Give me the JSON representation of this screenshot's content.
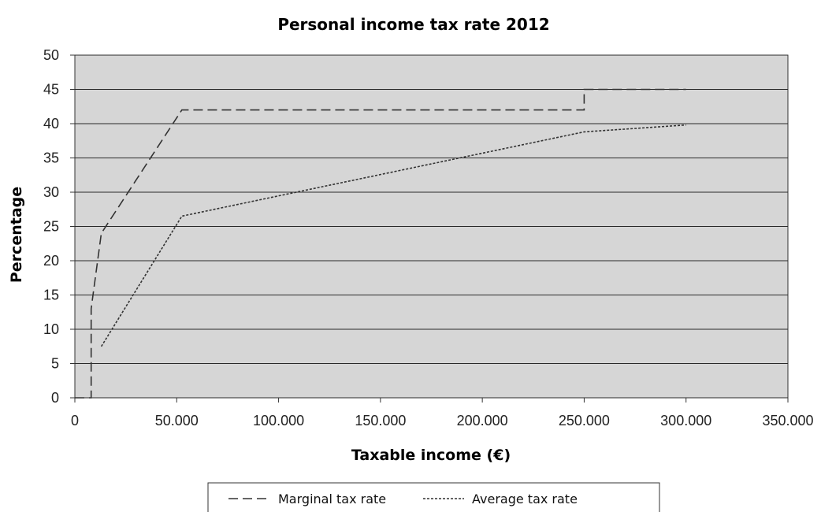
{
  "chart_data": {
    "type": "line",
    "title": "Personal income tax rate 2012",
    "xlabel": "Taxable income (€)",
    "ylabel": "Percentage",
    "xlim": [
      0,
      350000
    ],
    "ylim": [
      0,
      50
    ],
    "xticks": [
      0,
      50000,
      100000,
      150000,
      200000,
      250000,
      300000,
      350000
    ],
    "xtick_labels": [
      "0",
      "50.000",
      "100.000",
      "150.000",
      "200.000",
      "250.000",
      "300.000",
      "350.000"
    ],
    "yticks": [
      0,
      5,
      10,
      15,
      20,
      25,
      30,
      35,
      40,
      45,
      50
    ],
    "ytick_labels": [
      "0",
      "5",
      "10",
      "15",
      "20",
      "25",
      "30",
      "35",
      "40",
      "45",
      "50"
    ],
    "grid": "horizontal",
    "plot_background": "#d6d6d6",
    "legend_position": "bottom",
    "series": [
      {
        "name": "Marginal tax rate",
        "style": "dashed",
        "color": "#333333",
        "x": [
          0,
          8000,
          8000,
          13000,
          52500,
          250000,
          250000,
          300000
        ],
        "y": [
          0,
          0,
          13,
          24,
          42,
          42,
          45,
          45
        ]
      },
      {
        "name": "Average tax rate",
        "style": "dotted",
        "color": "#333333",
        "x": [
          13000,
          52500,
          250000,
          300000
        ],
        "y": [
          7.5,
          26.5,
          38.8,
          39.8
        ]
      }
    ]
  }
}
